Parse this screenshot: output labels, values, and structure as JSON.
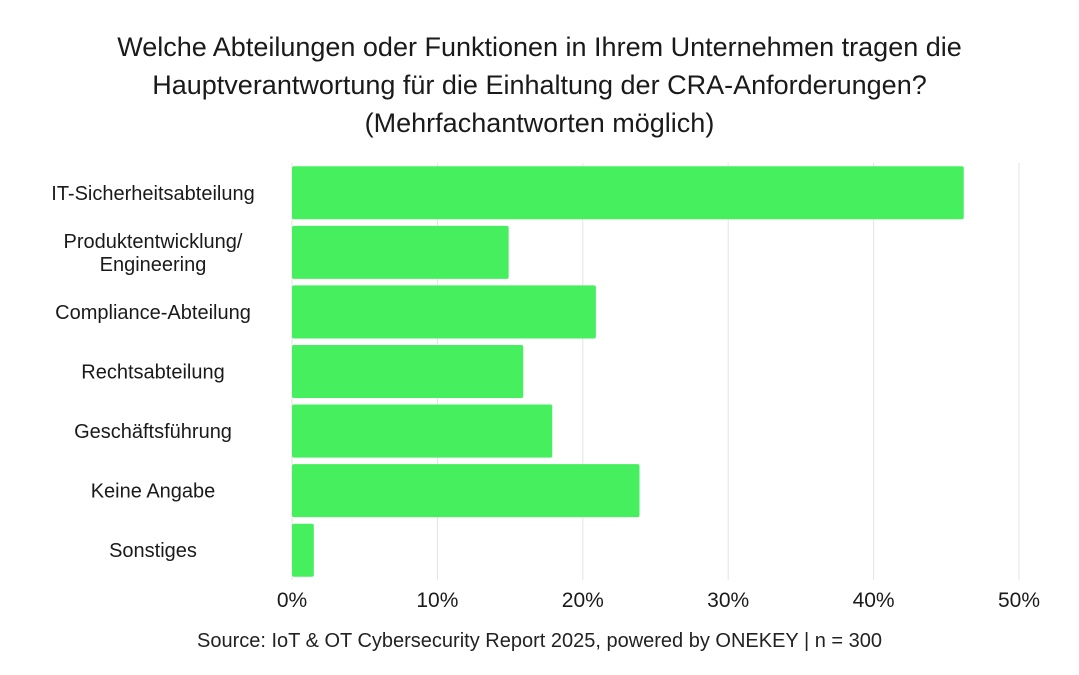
{
  "title_lines": [
    "Welche Abteilungen oder Funktionen in Ihrem Unternehmen tragen die",
    "Hauptverantwortung für die Einhaltung der CRA-Anforderungen?",
    "(Mehrfachantworten möglich)"
  ],
  "source": "Source: IoT & OT Cybersecurity Report 2025, powered by ONEKEY | n = 300",
  "chart_data": {
    "type": "bar",
    "orientation": "horizontal",
    "categories": [
      [
        "IT-Sicherheitsabteilung"
      ],
      [
        "Produktentwicklung/",
        "Engineering"
      ],
      [
        "Compliance-Abteilung"
      ],
      [
        "Rechtsabteilung"
      ],
      [
        "Geschäftsführung"
      ],
      [
        "Keine Angabe"
      ],
      [
        "Sonstiges"
      ]
    ],
    "values": [
      46.2,
      14.9,
      20.9,
      15.9,
      17.9,
      23.9,
      1.5
    ],
    "xlim": [
      0,
      50
    ],
    "x_ticks": [
      "0%",
      "10%",
      "20%",
      "30%",
      "40%",
      "50%"
    ],
    "bar_color": "#45ef5d",
    "grid": true
  }
}
